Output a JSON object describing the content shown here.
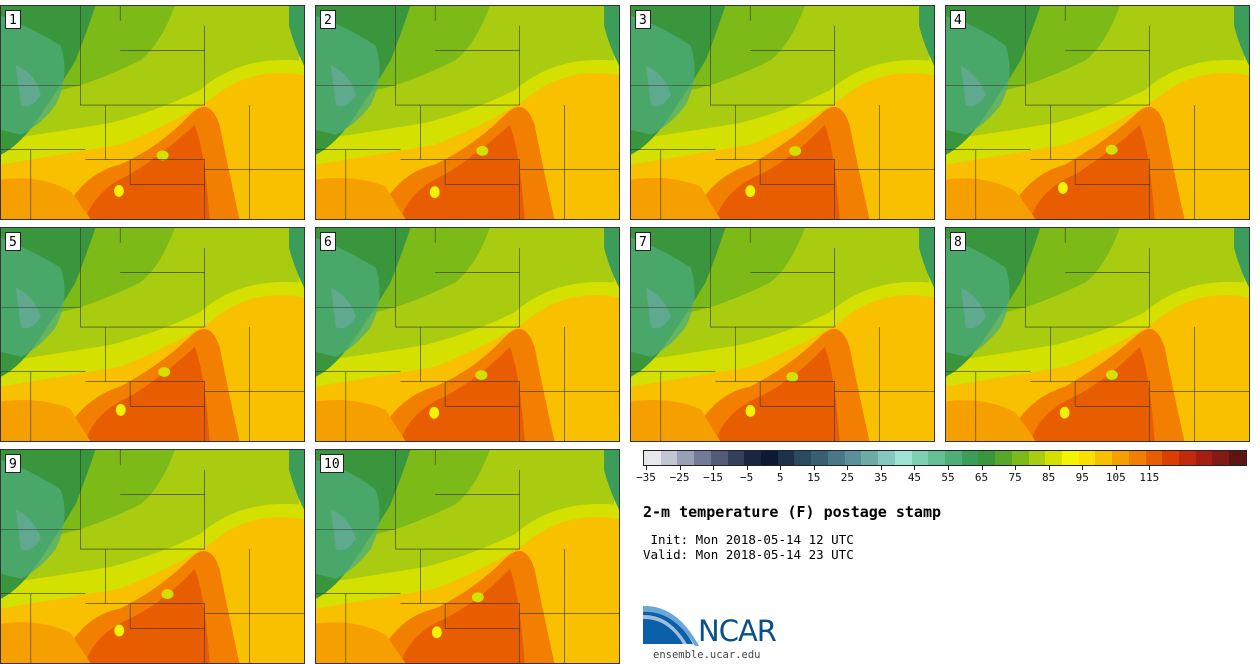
{
  "panels": [
    {
      "label": "1"
    },
    {
      "label": "2"
    },
    {
      "label": "3"
    },
    {
      "label": "4"
    },
    {
      "label": "5"
    },
    {
      "label": "6"
    },
    {
      "label": "7"
    },
    {
      "label": "8"
    },
    {
      "label": "9"
    },
    {
      "label": "10"
    }
  ],
  "colorbar": {
    "colors": [
      "#e6e8ee",
      "#c2c6d2",
      "#9aa0b4",
      "#747b96",
      "#535b78",
      "#34405c",
      "#1a2540",
      "#0b1a32",
      "#1d3248",
      "#2b4a5e",
      "#3b5f72",
      "#4a7886",
      "#5b9098",
      "#6eaaa8",
      "#86c7c0",
      "#9ee3d4",
      "#7dd1b3",
      "#64bf96",
      "#4fae78",
      "#3c9c5a",
      "#3a963c",
      "#56a828",
      "#7cba18",
      "#a9cc10",
      "#d3e000",
      "#f4f300",
      "#fbe000",
      "#f9c000",
      "#f6a000",
      "#f27f00",
      "#e85d00",
      "#d94000",
      "#c12a0a",
      "#a41f12",
      "#841a14",
      "#5e1410"
    ],
    "tick_labels": [
      "−35",
      "−25",
      "−15",
      "−5",
      "5",
      "15",
      "25",
      "35",
      "45",
      "55",
      "65",
      "75",
      "85",
      "95",
      "105",
      "115"
    ]
  },
  "title": "2-m temperature (F) postage stamp",
  "init_line": " Init: Mon 2018-05-14 12 UTC",
  "valid_line": "Valid: Mon 2018-05-14 23 UTC",
  "logo_text": "NCAR",
  "url": "ensemble.ucar.edu"
}
